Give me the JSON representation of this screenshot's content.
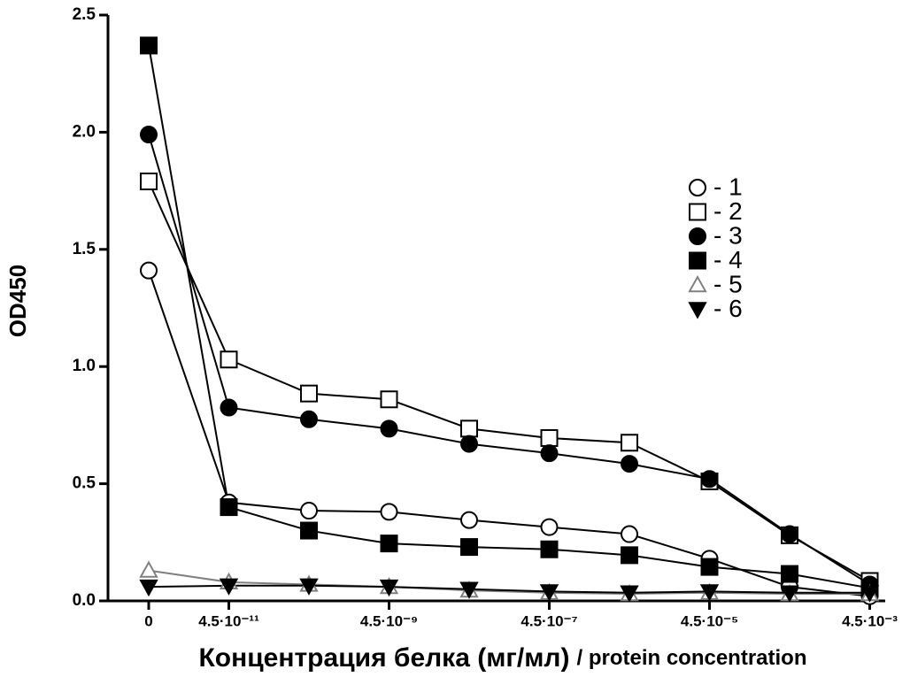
{
  "chart_data": {
    "type": "line",
    "ylabel": "OD450",
    "xlabel": "Концентрация белка  (мг/мл)",
    "xlabel_en": "/ protein concentration",
    "categories": [
      "0",
      "4.5·10⁻¹¹",
      null,
      "4.5·10⁻⁹",
      null,
      "4.5·10⁻⁷",
      null,
      "4.5·10⁻⁵",
      null,
      "4.5·10⁻³"
    ],
    "ylim": [
      0,
      2.5
    ],
    "yticks": [
      {
        "value": 0,
        "label": "0.0"
      },
      0.5,
      {
        "value": 1,
        "label": "1.0"
      },
      1.5,
      {
        "value": 2,
        "label": "2.0"
      },
      2.5
    ],
    "series": [
      {
        "name": "- 1",
        "color": "#000000",
        "marker": "circle",
        "filled": false,
        "values": [
          1.41,
          0.42,
          0.385,
          0.38,
          0.345,
          0.315,
          0.285,
          0.18,
          0.06,
          0.02
        ]
      },
      {
        "name": "- 2",
        "color": "#000000",
        "marker": "square",
        "filled": false,
        "values": [
          1.79,
          1.03,
          0.885,
          0.86,
          0.735,
          0.695,
          0.675,
          0.51,
          0.28,
          0.085
        ]
      },
      {
        "name": "- 3",
        "color": "#000000",
        "marker": "circle",
        "filled": true,
        "values": [
          1.99,
          0.825,
          0.775,
          0.735,
          0.67,
          0.63,
          0.585,
          0.52,
          0.285,
          0.07
        ]
      },
      {
        "name": "- 4",
        "color": "#000000",
        "marker": "square",
        "filled": true,
        "values": [
          2.37,
          0.4,
          0.3,
          0.245,
          0.23,
          0.22,
          0.195,
          0.145,
          0.115,
          0.055
        ]
      },
      {
        "name": "- 5",
        "color": "#808080",
        "marker": "triangle",
        "filled": false,
        "values": [
          0.13,
          0.08,
          0.07,
          0.06,
          0.045,
          0.035,
          0.03,
          0.035,
          0.03,
          0.03
        ]
      },
      {
        "name": "- 6",
        "color": "#000000",
        "marker": "triangle-down",
        "filled": true,
        "values": [
          0.06,
          0.065,
          0.065,
          0.06,
          0.05,
          0.04,
          0.035,
          0.04,
          0.035,
          0.035
        ]
      }
    ]
  }
}
